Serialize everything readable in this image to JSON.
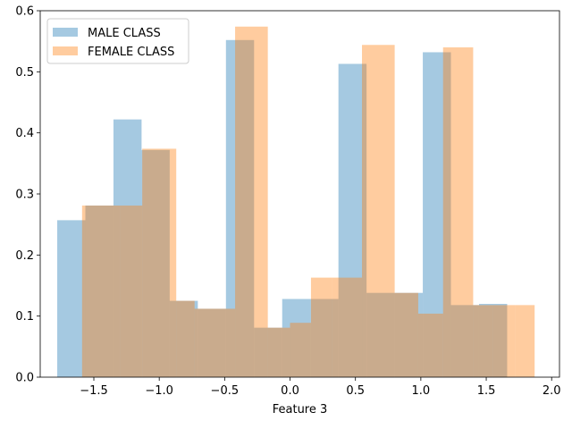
{
  "chart_data": {
    "type": "bar",
    "xlabel": "Feature 3",
    "ylabel": "",
    "xlim": [
      -1.91,
      2.06
    ],
    "ylim": [
      0,
      0.6
    ],
    "xticks": [
      -1.5,
      -1.0,
      -0.5,
      0.0,
      0.5,
      1.0,
      1.5,
      2.0
    ],
    "xtick_labels": [
      "−1.5",
      "−1.0",
      "−0.5",
      "0.0",
      "0.5",
      "1.0",
      "1.5",
      "2.0"
    ],
    "yticks": [
      0.0,
      0.1,
      0.2,
      0.3,
      0.4,
      0.5,
      0.6
    ],
    "ytick_labels": [
      "0.0",
      "0.1",
      "0.2",
      "0.3",
      "0.4",
      "0.5",
      "0.6"
    ],
    "grid": false,
    "legend_position": "top-left",
    "series": [
      {
        "name": "MALE CLASS",
        "color": "#1f77b4",
        "alpha": 0.4,
        "bin_edges": [
          -1.78,
          -1.565,
          -1.35,
          -1.135,
          -0.92,
          -0.705,
          -0.49,
          -0.275,
          -0.06,
          0.155,
          0.37,
          0.585,
          0.8,
          1.015,
          1.23,
          1.445,
          1.66
        ],
        "values": [
          0.257,
          0.281,
          0.422,
          0.372,
          0.125,
          0.112,
          0.552,
          0.081,
          0.128,
          0.128,
          0.513,
          0.138,
          0.138,
          0.532,
          0.118,
          0.12
        ]
      },
      {
        "name": "FEMALE CLASS",
        "color": "#ff7f0e",
        "alpha": 0.4,
        "bin_edges": [
          -1.59,
          -1.3,
          -1.13,
          -0.87,
          -0.73,
          -0.42,
          -0.17,
          0.0,
          0.16,
          0.32,
          0.55,
          0.8,
          0.98,
          1.17,
          1.4,
          1.55,
          1.72,
          1.87
        ],
        "values": [
          0.281,
          0.281,
          0.374,
          0.125,
          0.112,
          0.574,
          0.081,
          0.089,
          0.163,
          0.163,
          0.544,
          0.138,
          0.104,
          0.54,
          0.118,
          0.118,
          0.118
        ]
      }
    ]
  }
}
